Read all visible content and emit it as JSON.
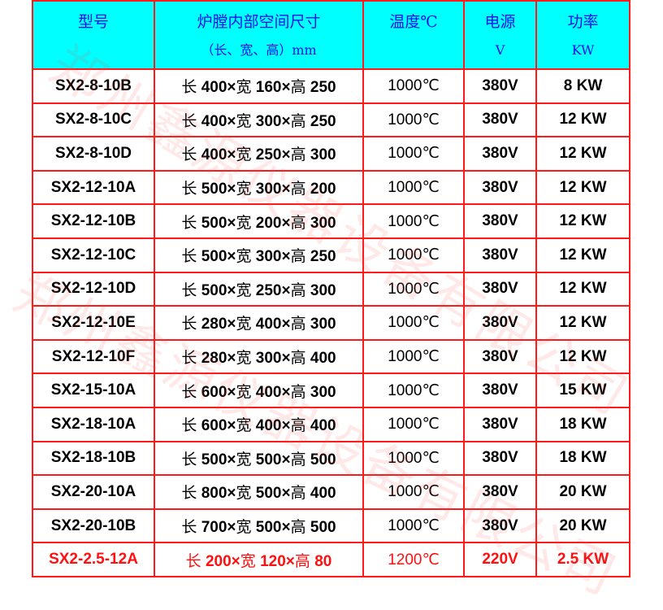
{
  "watermark": "郑州鑫源仪器设备有限公司",
  "colors": {
    "header_bg": "#00ffff",
    "header_text": "#1010ee",
    "grid": "#ff1a1a",
    "highlight_text": "#ff1010"
  },
  "headers": [
    {
      "l1": "型号",
      "l2": ""
    },
    {
      "l1": "炉膛内部空间尺寸",
      "l2": "（长、宽、高）mm"
    },
    {
      "l1": "温度℃",
      "l2": ""
    },
    {
      "l1": "电源",
      "l2": "V"
    },
    {
      "l1": "功率",
      "l2": "KW"
    }
  ],
  "rows": [
    {
      "model": "SX2-8-10B",
      "l": "400",
      "w": "160",
      "h": "250",
      "temp": "1000℃",
      "volt": "380V",
      "power": "8 KW"
    },
    {
      "model": "SX2-8-10C",
      "l": "400",
      "w": "300",
      "h": "250",
      "temp": "1000℃",
      "volt": "380V",
      "power": "12 KW"
    },
    {
      "model": "SX2-8-10D",
      "l": "400",
      "w": "250",
      "h": "300",
      "temp": "1000℃",
      "volt": "380V",
      "power": "12 KW"
    },
    {
      "model": "SX2-12-10A",
      "l": "500",
      "w": "300",
      "h": "200",
      "temp": "1000℃",
      "volt": "380V",
      "power": "12 KW"
    },
    {
      "model": "SX2-12-10B",
      "l": "500",
      "w": "200",
      "h": "300",
      "temp": "1000℃",
      "volt": "380V",
      "power": "12 KW"
    },
    {
      "model": "SX2-12-10C",
      "l": "500",
      "w": "300",
      "h": "250",
      "temp": "1000℃",
      "volt": "380V",
      "power": "12 KW"
    },
    {
      "model": "SX2-12-10D",
      "l": "500",
      "w": "250",
      "h": "300",
      "temp": "1000℃",
      "volt": "380V",
      "power": "12 KW"
    },
    {
      "model": "SX2-12-10E",
      "l": "280",
      "w": "400",
      "h": "300",
      "temp": "1000℃",
      "volt": "380V",
      "power": "12 KW"
    },
    {
      "model": "SX2-12-10F",
      "l": "280",
      "w": "300",
      "h": "400",
      "temp": "1000℃",
      "volt": "380V",
      "power": "12 KW"
    },
    {
      "model": "SX2-15-10A",
      "l": "600",
      "w": "400",
      "h": "300",
      "temp": "1000℃",
      "volt": "380V",
      "power": "15 KW"
    },
    {
      "model": "SX2-18-10A",
      "l": "600",
      "w": "400",
      "h": "400",
      "temp": "1000℃",
      "volt": "380V",
      "power": "18 KW"
    },
    {
      "model": "SX2-18-10B",
      "l": "500",
      "w": "500",
      "h": "500",
      "temp": "1000℃",
      "volt": "380V",
      "power": "18 KW"
    },
    {
      "model": "SX2-20-10A",
      "l": "800",
      "w": "500",
      "h": "400",
      "temp": "1000℃",
      "volt": "380V",
      "power": "20 KW"
    },
    {
      "model": "SX2-20-10B",
      "l": "700",
      "w": "500",
      "h": "500",
      "temp": "1000℃",
      "volt": "380V",
      "power": "20 KW"
    },
    {
      "model": "SX2-2.5-12A",
      "l": "200",
      "w": "120",
      "h": "80",
      "temp": "1200℃",
      "volt": "220V",
      "power": "2.5 KW",
      "highlight": true
    }
  ],
  "dim_labels": {
    "l": "长",
    "w": "宽",
    "h": "高",
    "x": "×"
  }
}
